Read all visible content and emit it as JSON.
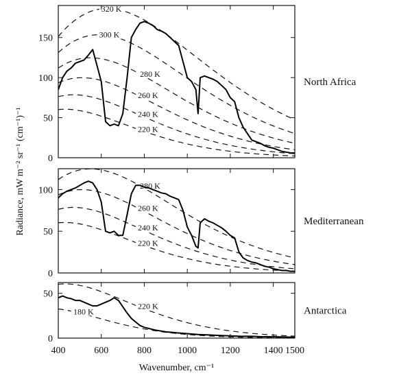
{
  "chart_data": [
    {
      "type": "line",
      "region": "North Africa",
      "xlim": [
        400,
        1500
      ],
      "ylim": [
        0,
        190
      ],
      "yticks": [
        0,
        50,
        100,
        150
      ],
      "blackbody_curves": [
        {
          "label": "320 K",
          "temperature": 320
        },
        {
          "label": "300 K",
          "temperature": 300
        },
        {
          "label": "280 K",
          "temperature": 280
        },
        {
          "label": "260 K",
          "temperature": 260
        },
        {
          "label": "240 K",
          "temperature": 240
        },
        {
          "label": "220 K",
          "temperature": 220
        }
      ],
      "series": [
        {
          "x": [
            400,
            420,
            440,
            460,
            480,
            500,
            520,
            540,
            560,
            580,
            600,
            620,
            640,
            660,
            680,
            700,
            720,
            740,
            760,
            780,
            800,
            820,
            840,
            860,
            880,
            900,
            920,
            940,
            960,
            980,
            1000,
            1020,
            1040,
            1050,
            1060,
            1080,
            1100,
            1120,
            1140,
            1160,
            1180,
            1200,
            1220,
            1240,
            1260,
            1280,
            1300,
            1320,
            1340,
            1360,
            1380,
            1400,
            1420,
            1440,
            1460,
            1480,
            1500
          ],
          "y": [
            85,
            100,
            108,
            112,
            118,
            120,
            122,
            128,
            135,
            115,
            95,
            45,
            40,
            42,
            40,
            55,
            100,
            150,
            160,
            168,
            170,
            168,
            165,
            160,
            158,
            155,
            150,
            145,
            140,
            120,
            100,
            95,
            85,
            55,
            100,
            102,
            100,
            98,
            95,
            90,
            85,
            75,
            70,
            50,
            38,
            30,
            22,
            20,
            18,
            15,
            13,
            12,
            10,
            8,
            7,
            6,
            6
          ]
        }
      ]
    },
    {
      "type": "line",
      "region": "Mediterranean",
      "xlim": [
        400,
        1500
      ],
      "ylim": [
        0,
        125
      ],
      "yticks": [
        0,
        50,
        100
      ],
      "blackbody_curves": [
        {
          "label": "280 K",
          "temperature": 280
        },
        {
          "label": "260 K",
          "temperature": 260
        },
        {
          "label": "240 K",
          "temperature": 240
        },
        {
          "label": "220 K",
          "temperature": 220
        }
      ],
      "series": [
        {
          "x": [
            400,
            420,
            440,
            460,
            480,
            500,
            520,
            540,
            560,
            580,
            600,
            620,
            640,
            660,
            680,
            700,
            720,
            740,
            760,
            780,
            800,
            820,
            840,
            860,
            880,
            900,
            920,
            940,
            960,
            980,
            1000,
            1020,
            1040,
            1050,
            1060,
            1080,
            1100,
            1120,
            1140,
            1160,
            1180,
            1200,
            1220,
            1240,
            1260,
            1280,
            1300,
            1320,
            1340,
            1360,
            1380,
            1400,
            1420,
            1440,
            1460,
            1480,
            1500
          ],
          "y": [
            90,
            95,
            98,
            100,
            102,
            105,
            108,
            110,
            108,
            100,
            85,
            50,
            48,
            50,
            45,
            45,
            70,
            95,
            105,
            105,
            103,
            102,
            100,
            98,
            96,
            95,
            92,
            90,
            88,
            75,
            55,
            45,
            32,
            30,
            60,
            65,
            62,
            60,
            57,
            54,
            50,
            45,
            42,
            25,
            18,
            15,
            13,
            12,
            10,
            8,
            7,
            5,
            4,
            3,
            3,
            2,
            2
          ]
        }
      ]
    },
    {
      "type": "line",
      "region": "Antarctica",
      "xlim": [
        400,
        1500
      ],
      "ylim": [
        0,
        62
      ],
      "yticks": [
        0,
        50
      ],
      "blackbody_curves": [
        {
          "label": "220 K",
          "temperature": 220
        },
        {
          "label": "180 K",
          "temperature": 180
        }
      ],
      "series": [
        {
          "x": [
            400,
            420,
            440,
            460,
            480,
            500,
            520,
            540,
            560,
            580,
            600,
            620,
            640,
            660,
            680,
            700,
            720,
            740,
            760,
            780,
            800,
            850,
            900,
            950,
            1000,
            1050,
            1100,
            1150,
            1200,
            1250,
            1300,
            1350,
            1400,
            1450,
            1500
          ],
          "y": [
            45,
            47,
            45,
            44,
            42,
            42,
            40,
            38,
            36,
            36,
            38,
            40,
            42,
            45,
            42,
            35,
            28,
            22,
            18,
            14,
            12,
            9,
            7,
            6,
            5,
            4,
            3.5,
            3,
            2.5,
            2,
            2,
            1.5,
            1.5,
            1.2,
            1
          ]
        }
      ]
    }
  ],
  "axes": {
    "xlabel": "Wavenumber, cm⁻¹",
    "ylabel": "Radiance, mW m⁻² sr⁻¹ (cm⁻¹)⁻¹",
    "xticks": [
      400,
      600,
      800,
      1000,
      1200,
      1400,
      1500
    ]
  }
}
